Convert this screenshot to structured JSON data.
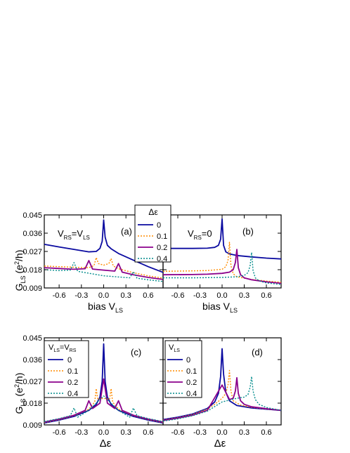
{
  "colors": {
    "s0": "#0a0aa0",
    "s1": "#ff8c00",
    "s2": "#8b008b",
    "s3": "#008b8b",
    "axis": "#000000"
  },
  "shared": {
    "ylabel_main": "G",
    "ylabel_sub": "LS",
    "ylabel_unit": "(e",
    "ylabel_sup": "2",
    "ylabel_tail": "/h)",
    "xlabel_top_main": "bias V",
    "xlabel_top_sub": "LS",
    "xlabel_bottom": "Δε"
  },
  "legend_top": {
    "title": "Δε",
    "entries": [
      "0",
      "0.1",
      "0.2",
      "0.4"
    ]
  },
  "legend_c": {
    "title_main": "V",
    "title_sub1": "LS",
    "title_mid": "=V",
    "title_sub2": "RS",
    "entries": [
      "0",
      "0.1",
      "0.2",
      "0.4"
    ]
  },
  "legend_d": {
    "title_main": "V",
    "title_sub": "LS",
    "entries": [
      "0",
      "0.1",
      "0.2",
      "0.4"
    ]
  },
  "annotations": {
    "a_label": "(a)",
    "b_label": "(b)",
    "c_label": "(c)",
    "d_label": "(d)",
    "a_cond_main": "V",
    "a_cond_sub1": "RS",
    "a_cond_mid": "=V",
    "a_cond_sub2": "LS",
    "b_cond_main": "V",
    "b_cond_sub": "RS",
    "b_cond_tail": "=0"
  },
  "chart_data": [
    {
      "panel": "a",
      "type": "line",
      "xlim": [
        -0.8,
        0.8
      ],
      "ylim": [
        0.009,
        0.045
      ],
      "xticks": [
        -0.6,
        -0.3,
        0.0,
        0.3,
        0.6
      ],
      "xtick_labels": [
        "-0.6",
        "-0.3",
        "0.0",
        "0.3",
        "0.6"
      ],
      "yticks": [
        0.009,
        0.018,
        0.027,
        0.036,
        0.045
      ],
      "ytick_labels": [
        "0.009",
        "0.018",
        "0.027",
        "0.036",
        "0.045"
      ],
      "series": [
        {
          "name": "0",
          "style": "solid",
          "x": [
            -0.8,
            -0.6,
            -0.4,
            -0.2,
            -0.1,
            -0.05,
            -0.02,
            0,
            0.02,
            0.05,
            0.1,
            0.2,
            0.4,
            0.6,
            0.8
          ],
          "y": [
            0.0305,
            0.0292,
            0.028,
            0.0268,
            0.027,
            0.0285,
            0.032,
            0.0425,
            0.034,
            0.03,
            0.0283,
            0.026,
            0.0227,
            0.0195,
            0.0167
          ]
        },
        {
          "name": "0.1",
          "style": "dotted",
          "x": [
            -0.8,
            -0.6,
            -0.4,
            -0.2,
            -0.13,
            -0.1,
            -0.07,
            0,
            0.07,
            0.1,
            0.13,
            0.2,
            0.4,
            0.6,
            0.8
          ],
          "y": [
            0.0198,
            0.0195,
            0.0192,
            0.019,
            0.02,
            0.024,
            0.021,
            0.0202,
            0.021,
            0.0235,
            0.0198,
            0.0185,
            0.0165,
            0.015,
            0.0138
          ]
        },
        {
          "name": "0.2",
          "style": "solid",
          "x": [
            -0.8,
            -0.6,
            -0.4,
            -0.25,
            -0.2,
            -0.15,
            0,
            0.15,
            0.2,
            0.25,
            0.4,
            0.6,
            0.8
          ],
          "y": [
            0.019,
            0.0186,
            0.0182,
            0.0185,
            0.0225,
            0.0183,
            0.0178,
            0.0173,
            0.021,
            0.0168,
            0.0155,
            0.0142,
            0.0132
          ]
        },
        {
          "name": "0.4",
          "style": "dotted",
          "x": [
            -0.8,
            -0.6,
            -0.45,
            -0.4,
            -0.35,
            0,
            0.35,
            0.4,
            0.45,
            0.6,
            0.8
          ],
          "y": [
            0.018,
            0.0176,
            0.0178,
            0.0215,
            0.0172,
            0.015,
            0.014,
            0.017,
            0.0138,
            0.013,
            0.0122
          ]
        }
      ]
    },
    {
      "panel": "b",
      "type": "line",
      "xlim": [
        -0.8,
        0.8
      ],
      "ylim": [
        0.009,
        0.045
      ],
      "xticks": [
        -0.6,
        -0.3,
        0.0,
        0.3,
        0.6
      ],
      "xtick_labels": [
        "-0.6",
        "-0.3",
        "0.0",
        "0.3",
        "0.6"
      ],
      "yticks": [
        0.009,
        0.018,
        0.027,
        0.036,
        0.045
      ],
      "series": [
        {
          "name": "0",
          "style": "solid",
          "x": [
            -0.8,
            -0.4,
            -0.2,
            -0.1,
            -0.05,
            -0.02,
            0,
            0.02,
            0.05,
            0.1,
            0.2,
            0.4,
            0.6,
            0.8
          ],
          "y": [
            0.0285,
            0.0285,
            0.0286,
            0.029,
            0.03,
            0.033,
            0.043,
            0.03,
            0.0268,
            0.0258,
            0.025,
            0.0243,
            0.0237,
            0.0233
          ]
        },
        {
          "name": "0.1",
          "style": "dotted",
          "x": [
            -0.8,
            -0.4,
            -0.2,
            0,
            0.05,
            0.08,
            0.1,
            0.12,
            0.15,
            0.2,
            0.4,
            0.6,
            0.8
          ],
          "y": [
            0.0172,
            0.0174,
            0.0176,
            0.0182,
            0.0195,
            0.0225,
            0.0315,
            0.02,
            0.016,
            0.0145,
            0.0132,
            0.0124,
            0.0118
          ]
        },
        {
          "name": "0.2",
          "style": "solid",
          "x": [
            -0.8,
            -0.4,
            -0.2,
            0,
            0.1,
            0.15,
            0.18,
            0.2,
            0.22,
            0.25,
            0.3,
            0.4,
            0.6,
            0.8
          ],
          "y": [
            0.0155,
            0.0156,
            0.0158,
            0.0162,
            0.0168,
            0.018,
            0.0215,
            0.028,
            0.019,
            0.0155,
            0.014,
            0.013,
            0.012,
            0.0113
          ]
        },
        {
          "name": "0.4",
          "style": "dotted",
          "x": [
            -0.8,
            -0.4,
            0,
            0.2,
            0.3,
            0.35,
            0.38,
            0.4,
            0.42,
            0.45,
            0.5,
            0.6,
            0.8
          ],
          "y": [
            0.014,
            0.014,
            0.0142,
            0.0145,
            0.0152,
            0.0165,
            0.02,
            0.0265,
            0.0175,
            0.014,
            0.0125,
            0.0115,
            0.0107
          ]
        }
      ]
    },
    {
      "panel": "c",
      "type": "line",
      "xlim": [
        -0.8,
        0.8
      ],
      "ylim": [
        0.009,
        0.045
      ],
      "xticks": [
        -0.6,
        -0.3,
        0.0,
        0.3,
        0.6
      ],
      "xtick_labels": [
        "-0.6",
        "-0.3",
        "0.0",
        "0.3",
        "0.6"
      ],
      "yticks": [
        0.009,
        0.018,
        0.027,
        0.036,
        0.045
      ],
      "ytick_labels": [
        "0.009",
        "0.018",
        "0.027",
        "0.036",
        "0.045"
      ],
      "series": [
        {
          "name": "0",
          "style": "solid",
          "x": [
            -0.8,
            -0.6,
            -0.4,
            -0.2,
            -0.1,
            -0.05,
            -0.02,
            0,
            0.02,
            0.05,
            0.1,
            0.2,
            0.4,
            0.6,
            0.8
          ],
          "y": [
            0.0098,
            0.011,
            0.0125,
            0.015,
            0.0175,
            0.0205,
            0.027,
            0.0425,
            0.027,
            0.0205,
            0.0175,
            0.015,
            0.0125,
            0.011,
            0.0098
          ]
        },
        {
          "name": "0.1",
          "style": "dotted",
          "x": [
            -0.8,
            -0.6,
            -0.4,
            -0.2,
            -0.12,
            -0.1,
            -0.08,
            0,
            0.08,
            0.1,
            0.12,
            0.2,
            0.4,
            0.6,
            0.8
          ],
          "y": [
            0.01,
            0.0112,
            0.0128,
            0.0155,
            0.0185,
            0.024,
            0.0195,
            0.02,
            0.0195,
            0.024,
            0.0185,
            0.0155,
            0.0128,
            0.0112,
            0.01
          ]
        },
        {
          "name": "0.2",
          "style": "solid",
          "x": [
            -0.8,
            -0.6,
            -0.4,
            -0.25,
            -0.2,
            -0.15,
            -0.05,
            0,
            0.05,
            0.15,
            0.2,
            0.25,
            0.4,
            0.6,
            0.8
          ],
          "y": [
            0.0102,
            0.0114,
            0.013,
            0.015,
            0.019,
            0.0158,
            0.018,
            0.028,
            0.018,
            0.0158,
            0.019,
            0.015,
            0.013,
            0.0114,
            0.0102
          ]
        },
        {
          "name": "0.4",
          "style": "dotted",
          "x": [
            -0.8,
            -0.6,
            -0.45,
            -0.4,
            -0.35,
            -0.2,
            0,
            0.2,
            0.35,
            0.4,
            0.45,
            0.6,
            0.8
          ],
          "y": [
            0.0104,
            0.0116,
            0.0128,
            0.016,
            0.0122,
            0.015,
            0.021,
            0.015,
            0.0122,
            0.016,
            0.0128,
            0.0116,
            0.0104
          ]
        }
      ]
    },
    {
      "panel": "d",
      "type": "line",
      "xlim": [
        -0.8,
        0.8
      ],
      "ylim": [
        0.009,
        0.045
      ],
      "xticks": [
        -0.6,
        -0.3,
        0.0,
        0.3,
        0.6
      ],
      "xtick_labels": [
        "-0.6",
        "-0.3",
        "0.0",
        "0.3",
        "0.6"
      ],
      "yticks": [
        0.009,
        0.018,
        0.027,
        0.036,
        0.045
      ],
      "series": [
        {
          "name": "0",
          "style": "solid",
          "x": [
            -0.8,
            -0.6,
            -0.4,
            -0.2,
            -0.1,
            -0.05,
            -0.02,
            0,
            0.02,
            0.05,
            0.1,
            0.2,
            0.4,
            0.6,
            0.8
          ],
          "y": [
            0.0112,
            0.0122,
            0.0135,
            0.0158,
            0.0185,
            0.022,
            0.029,
            0.0405,
            0.03,
            0.0225,
            0.019,
            0.017,
            0.016,
            0.0155,
            0.015
          ]
        },
        {
          "name": "0.1",
          "style": "dotted",
          "x": [
            -0.8,
            -0.6,
            -0.4,
            -0.2,
            -0.1,
            0,
            0.05,
            0.08,
            0.1,
            0.12,
            0.15,
            0.25,
            0.4,
            0.6,
            0.8
          ],
          "y": [
            0.011,
            0.012,
            0.0133,
            0.0155,
            0.0175,
            0.02,
            0.022,
            0.0255,
            0.0315,
            0.023,
            0.019,
            0.0172,
            0.0163,
            0.0156,
            0.015
          ]
        },
        {
          "name": "0.2",
          "style": "solid",
          "x": [
            -0.8,
            -0.6,
            -0.4,
            -0.2,
            0,
            0.1,
            0.15,
            0.18,
            0.2,
            0.22,
            0.25,
            0.3,
            0.4,
            0.6,
            0.8
          ],
          "y": [
            0.0108,
            0.0118,
            0.013,
            0.015,
            0.0255,
            0.0195,
            0.02,
            0.023,
            0.0285,
            0.022,
            0.019,
            0.0175,
            0.0165,
            0.0157,
            0.015
          ]
        },
        {
          "name": "0.4",
          "style": "dotted",
          "x": [
            -0.8,
            -0.6,
            -0.4,
            -0.2,
            0,
            0.2,
            0.3,
            0.35,
            0.38,
            0.4,
            0.42,
            0.45,
            0.5,
            0.6,
            0.8
          ],
          "y": [
            0.0106,
            0.0115,
            0.0128,
            0.0147,
            0.0185,
            0.02,
            0.0205,
            0.0215,
            0.0245,
            0.029,
            0.023,
            0.0195,
            0.0175,
            0.0162,
            0.015
          ]
        }
      ]
    }
  ]
}
